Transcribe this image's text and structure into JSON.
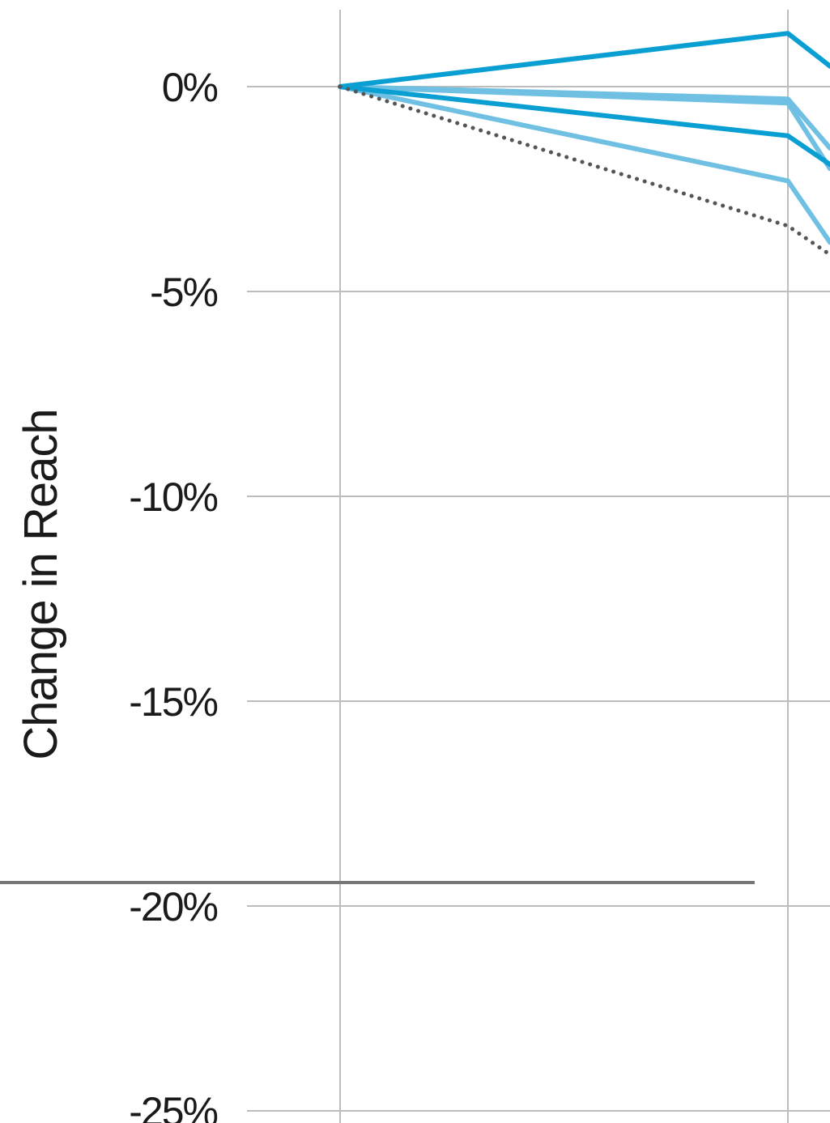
{
  "chart_data": {
    "type": "line",
    "ylabel": "Change in Reach",
    "yticks": [
      "0%",
      "-5%",
      "-10%",
      "-15%",
      "-20%",
      "-25%"
    ],
    "ylim": [
      -25,
      1.5
    ],
    "grid": true,
    "colors": {
      "dark_blue": "#0a9fd2",
      "light_blue": "#6fc0e3",
      "dotted": "#555555",
      "grid": "#bdbdbd",
      "divider": "#777777"
    },
    "series": [
      {
        "color_key": "dark_blue",
        "dash": false,
        "values": [
          0,
          1.3,
          0.5
        ]
      },
      {
        "color_key": "light_blue",
        "dash": false,
        "values": [
          0,
          -0.3,
          -1.5
        ]
      },
      {
        "color_key": "light_blue",
        "dash": false,
        "values": [
          0,
          -0.4,
          -2.0
        ]
      },
      {
        "color_key": "dark_blue",
        "dash": false,
        "values": [
          0,
          -1.2,
          -1.9
        ]
      },
      {
        "color_key": "light_blue",
        "dash": false,
        "values": [
          0,
          -2.3,
          -3.8
        ]
      },
      {
        "color_key": "dotted",
        "dash": true,
        "values": [
          0,
          -3.4,
          -4.1
        ]
      }
    ]
  }
}
